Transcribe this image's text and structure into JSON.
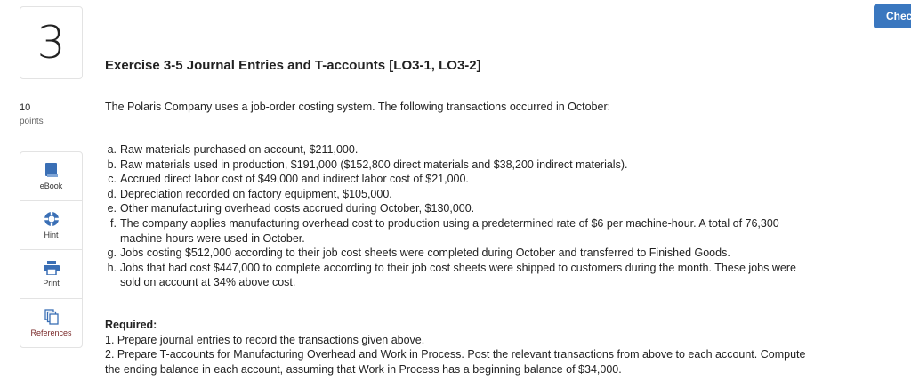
{
  "question_number": "3",
  "check_button": "Chec",
  "title": "Exercise 3-5 Journal Entries and T-accounts [LO3-1, LO3-2]",
  "points": {
    "value": "10",
    "label": "points"
  },
  "tools": [
    {
      "label": "eBook",
      "icon": "book-icon"
    },
    {
      "label": "Hint",
      "icon": "lifebuoy-icon"
    },
    {
      "label": "Print",
      "icon": "printer-icon"
    },
    {
      "label": "References",
      "icon": "copy-icon"
    }
  ],
  "accent_color": "#3a77bf",
  "intro": "The Polaris Company uses a job-order costing system. The following transactions occurred in October:",
  "transactions": [
    {
      "key": "a.",
      "text": "Raw materials purchased on account, $211,000."
    },
    {
      "key": "b.",
      "text": "Raw materials used in production, $191,000 ($152,800 direct materials and $38,200 indirect materials)."
    },
    {
      "key": "c.",
      "text": "Accrued direct labor cost of $49,000 and indirect labor cost of $21,000."
    },
    {
      "key": "d.",
      "text": "Depreciation recorded on factory equipment, $105,000."
    },
    {
      "key": "e.",
      "text": "Other manufacturing overhead costs accrued during October, $130,000."
    },
    {
      "key": "f.",
      "text": "The company applies manufacturing overhead cost to production using a predetermined rate of $6 per machine-hour. A total of 76,300 machine-hours were used in October."
    },
    {
      "key": "g.",
      "text": "Jobs costing $512,000 according to their job cost sheets were completed during October and transferred to Finished Goods."
    },
    {
      "key": "h.",
      "text": "Jobs that had cost $447,000 to complete according to their job cost sheets were shipped to customers during the month. These jobs were sold on account at 34% above cost."
    }
  ],
  "required": {
    "heading": "Required:",
    "items": [
      "1. Prepare journal entries to record the transactions given above.",
      "2. Prepare T-accounts for Manufacturing Overhead and Work in Process. Post the relevant transactions from above to each account. Compute the ending balance in each account, assuming that Work in Process has a beginning balance of $34,000."
    ]
  }
}
